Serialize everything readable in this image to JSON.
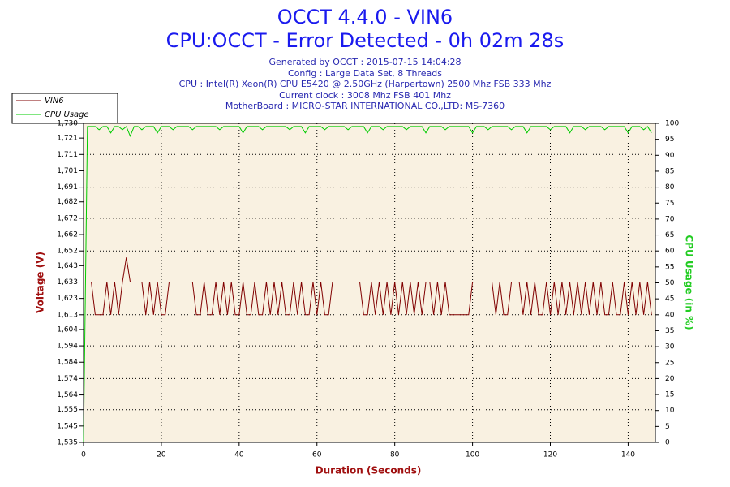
{
  "chart_data": {
    "type": "line",
    "title": "OCCT 4.4.0 - VIN6",
    "subtitle": "CPU:OCCT - Error Detected - 0h 02m 28s",
    "info": [
      "Generated by OCCT : 2015-07-15 14:04:28",
      "Config : Large Data Set, 8 Threads",
      "CPU : Intel(R) Xeon(R) CPU E5420 @ 2.50GHz (Harpertown) 2500 Mhz FSB 333 Mhz",
      "Current clock : 3008 Mhz FSB 401 Mhz",
      "MotherBoard : MICRO-STAR INTERNATIONAL CO.,LTD: MS-7360"
    ],
    "xlabel": "Duration (Seconds)",
    "ylabel": "Voltage (V)",
    "y2label": "CPU Usage (in %)",
    "xlim": [
      0,
      147
    ],
    "xticks": [
      0,
      20,
      40,
      60,
      80,
      100,
      120,
      140
    ],
    "ylim": [
      1.535,
      1.73
    ],
    "yticks": [
      {
        "value": 1.535,
        "label": "1,535"
      },
      {
        "value": 1.545,
        "label": "1,545"
      },
      {
        "value": 1.555,
        "label": "1,555"
      },
      {
        "value": 1.564,
        "label": "1,564"
      },
      {
        "value": 1.574,
        "label": "1,574"
      },
      {
        "value": 1.584,
        "label": "1,584"
      },
      {
        "value": 1.594,
        "label": "1,594"
      },
      {
        "value": 1.604,
        "label": "1,604"
      },
      {
        "value": 1.613,
        "label": "1,613"
      },
      {
        "value": 1.623,
        "label": "1,623"
      },
      {
        "value": 1.633,
        "label": "1,633"
      },
      {
        "value": 1.643,
        "label": "1,643"
      },
      {
        "value": 1.652,
        "label": "1,652"
      },
      {
        "value": 1.662,
        "label": "1,662"
      },
      {
        "value": 1.672,
        "label": "1,672"
      },
      {
        "value": 1.682,
        "label": "1,682"
      },
      {
        "value": 1.691,
        "label": "1,691"
      },
      {
        "value": 1.701,
        "label": "1,701"
      },
      {
        "value": 1.711,
        "label": "1,711"
      },
      {
        "value": 1.721,
        "label": "1,721"
      },
      {
        "value": 1.73,
        "label": "1,730"
      }
    ],
    "y2lim": [
      0,
      100
    ],
    "y2ticks": [
      0,
      5,
      10,
      15,
      20,
      25,
      30,
      35,
      40,
      45,
      50,
      55,
      60,
      65,
      70,
      75,
      80,
      85,
      90,
      95,
      100
    ],
    "grid": true,
    "x": [
      0,
      1,
      2,
      3,
      4,
      5,
      6,
      7,
      8,
      9,
      10,
      11,
      12,
      13,
      14,
      15,
      16,
      17,
      18,
      19,
      20,
      21,
      22,
      23,
      24,
      25,
      26,
      27,
      28,
      29,
      30,
      31,
      32,
      33,
      34,
      35,
      36,
      37,
      38,
      39,
      40,
      41,
      42,
      43,
      44,
      45,
      46,
      47,
      48,
      49,
      50,
      51,
      52,
      53,
      54,
      55,
      56,
      57,
      58,
      59,
      60,
      61,
      62,
      63,
      64,
      65,
      66,
      67,
      68,
      69,
      70,
      71,
      72,
      73,
      74,
      75,
      76,
      77,
      78,
      79,
      80,
      81,
      82,
      83,
      84,
      85,
      86,
      87,
      88,
      89,
      90,
      91,
      92,
      93,
      94,
      95,
      96,
      97,
      98,
      99,
      100,
      101,
      102,
      103,
      104,
      105,
      106,
      107,
      108,
      109,
      110,
      111,
      112,
      113,
      114,
      115,
      116,
      117,
      118,
      119,
      120,
      121,
      122,
      123,
      124,
      125,
      126,
      127,
      128,
      129,
      130,
      131,
      132,
      133,
      134,
      135,
      136,
      137,
      138,
      139,
      140,
      141,
      142,
      143,
      144,
      145,
      146
    ],
    "series": [
      {
        "name": "VIN6",
        "color": "#800000",
        "values": [
          1.633,
          1.633,
          1.633,
          1.613,
          1.613,
          1.613,
          1.633,
          1.613,
          1.633,
          1.613,
          1.633,
          1.648,
          1.633,
          1.633,
          1.633,
          1.633,
          1.613,
          1.633,
          1.613,
          1.633,
          1.613,
          1.613,
          1.633,
          1.633,
          1.633,
          1.633,
          1.633,
          1.633,
          1.633,
          1.613,
          1.613,
          1.633,
          1.613,
          1.613,
          1.633,
          1.613,
          1.633,
          1.613,
          1.633,
          1.613,
          1.613,
          1.633,
          1.613,
          1.613,
          1.633,
          1.613,
          1.613,
          1.633,
          1.613,
          1.633,
          1.613,
          1.633,
          1.613,
          1.613,
          1.633,
          1.613,
          1.633,
          1.613,
          1.613,
          1.633,
          1.613,
          1.633,
          1.613,
          1.613,
          1.633,
          1.633,
          1.633,
          1.633,
          1.633,
          1.633,
          1.633,
          1.633,
          1.613,
          1.613,
          1.633,
          1.613,
          1.633,
          1.613,
          1.633,
          1.613,
          1.633,
          1.613,
          1.633,
          1.613,
          1.633,
          1.613,
          1.633,
          1.613,
          1.633,
          1.633,
          1.613,
          1.633,
          1.613,
          1.633,
          1.613,
          1.613,
          1.613,
          1.613,
          1.613,
          1.613,
          1.633,
          1.633,
          1.633,
          1.633,
          1.633,
          1.633,
          1.613,
          1.633,
          1.613,
          1.613,
          1.633,
          1.633,
          1.633,
          1.613,
          1.633,
          1.613,
          1.633,
          1.613,
          1.613,
          1.633,
          1.613,
          1.633,
          1.613,
          1.633,
          1.613,
          1.633,
          1.613,
          1.633,
          1.613,
          1.633,
          1.613,
          1.633,
          1.613,
          1.633,
          1.613,
          1.613,
          1.633,
          1.613,
          1.613,
          1.633,
          1.613,
          1.633,
          1.613,
          1.633,
          1.613,
          1.633,
          1.613
        ]
      },
      {
        "name": "CPU Usage",
        "color": "#00cc00",
        "axis": "y2",
        "values": [
          0,
          99,
          99,
          99,
          98,
          99,
          99,
          97,
          99,
          99,
          98,
          99,
          96,
          99,
          99,
          98,
          99,
          99,
          99,
          97,
          99,
          99,
          99,
          98,
          99,
          99,
          99,
          99,
          98,
          99,
          99,
          99,
          99,
          99,
          99,
          98,
          99,
          99,
          99,
          99,
          99,
          97,
          99,
          99,
          99,
          99,
          98,
          99,
          99,
          99,
          99,
          99,
          99,
          98,
          99,
          99,
          99,
          97,
          99,
          99,
          99,
          99,
          98,
          99,
          99,
          99,
          99,
          99,
          98,
          99,
          99,
          99,
          99,
          97,
          99,
          99,
          99,
          98,
          99,
          99,
          99,
          99,
          99,
          98,
          99,
          99,
          99,
          99,
          97,
          99,
          99,
          99,
          99,
          98,
          99,
          99,
          99,
          99,
          99,
          99,
          97,
          99,
          99,
          99,
          98,
          99,
          99,
          99,
          99,
          99,
          98,
          99,
          99,
          99,
          97,
          99,
          99,
          99,
          99,
          99,
          98,
          99,
          99,
          99,
          99,
          97,
          99,
          99,
          99,
          98,
          99,
          99,
          99,
          99,
          98,
          99,
          99,
          99,
          99,
          99,
          97,
          99,
          99,
          99,
          98,
          99,
          97
        ]
      }
    ]
  }
}
